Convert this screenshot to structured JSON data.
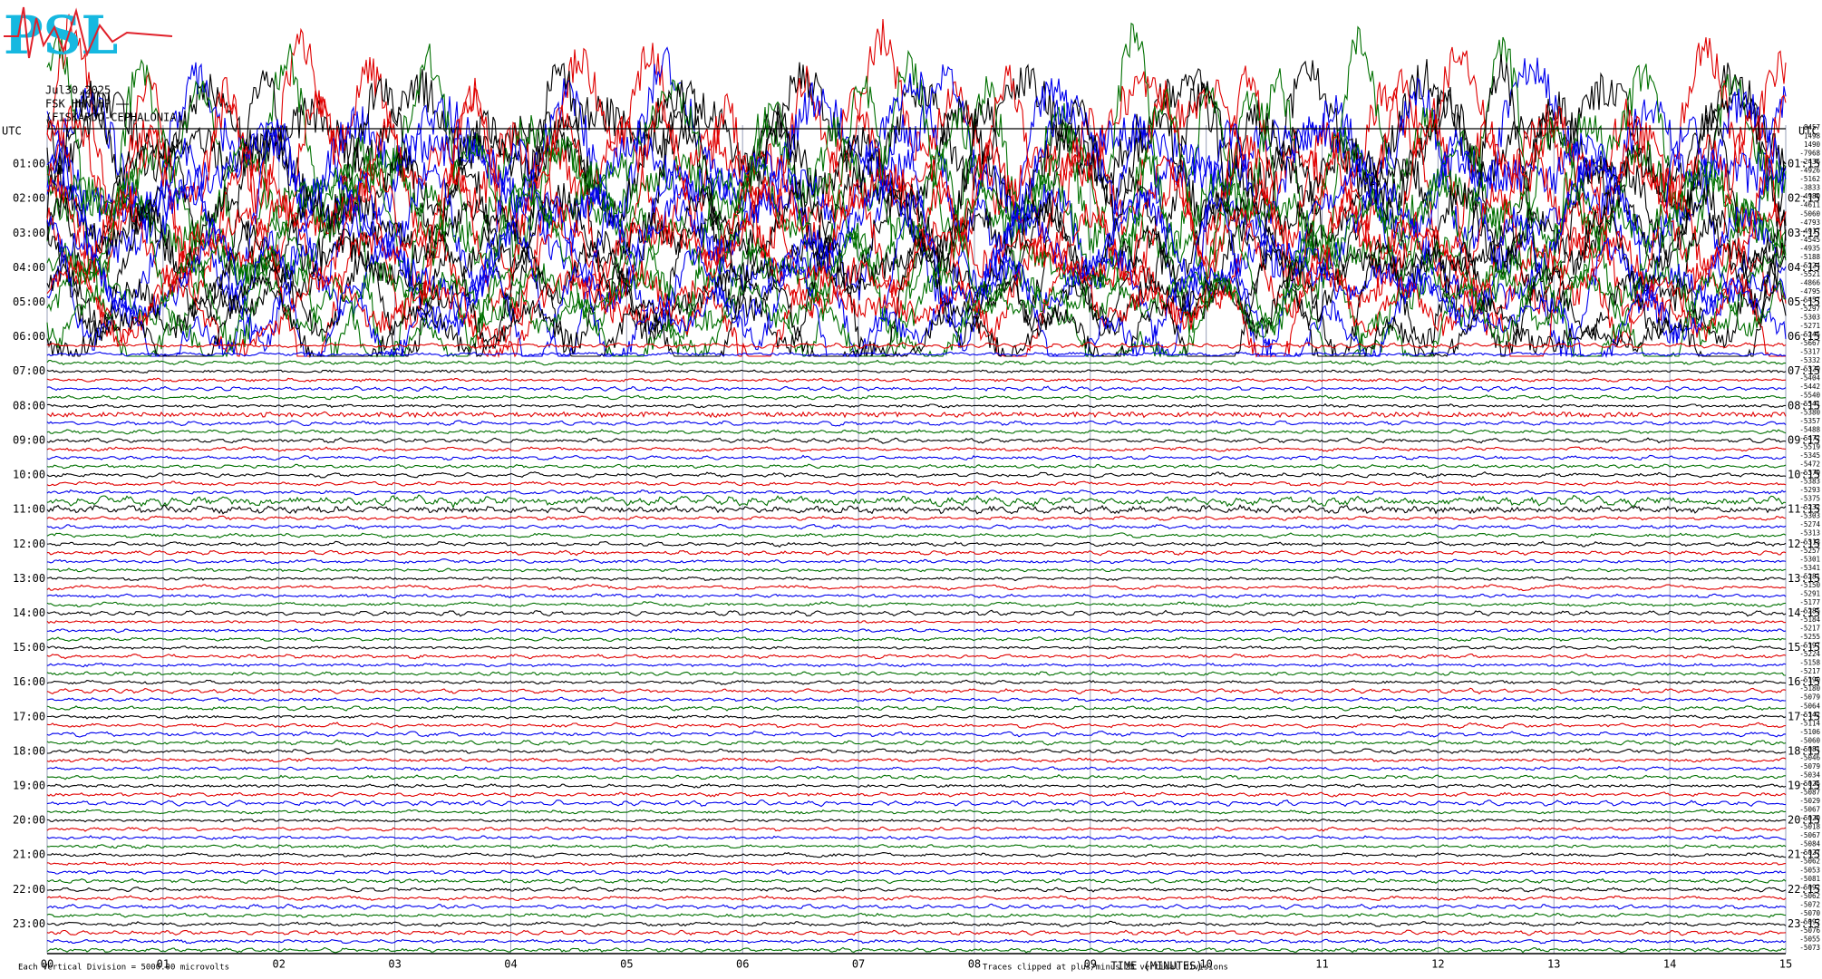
{
  "header": {
    "logo": "PSL",
    "date": "Jul30,2025",
    "station": "FSK HHN HP",
    "location": "(FISKARDO-CEPHALONIA)"
  },
  "left_axis": {
    "title": "UTC",
    "labels": [
      "01:00",
      "02:00",
      "03:00",
      "04:00",
      "05:00",
      "06:00",
      "07:00",
      "08:00",
      "09:00",
      "10:00",
      "11:00",
      "12:00",
      "13:00",
      "14:00",
      "15:00",
      "16:00",
      "17:00",
      "18:00",
      "19:00",
      "20:00",
      "21:00",
      "22:00",
      "23:00"
    ]
  },
  "right_axis": {
    "title": "UTC",
    "labels": [
      "01:15",
      "02:15",
      "03:15",
      "04:15",
      "05:15",
      "06:15",
      "07:15",
      "08:15",
      "09:15",
      "10:15",
      "11:15",
      "12:15",
      "13:15",
      "14:15",
      "15:15",
      "16:15",
      "17:15",
      "18:15",
      "19:15",
      "20:15",
      "21:15",
      "22:15",
      "23:15"
    ]
  },
  "trace_offsets": [
    -8457,
    1498,
    1490,
    -7968,
    -2436,
    -4926,
    -5162,
    -3833,
    -4980,
    -4611,
    -5060,
    -4793,
    -4917,
    -4545,
    -4935,
    -5188,
    -5224,
    -5521,
    -4866,
    -4795,
    -5457,
    -5297,
    -5303,
    -5271,
    -5245,
    -5667,
    -5317,
    -5332,
    -5329,
    -5404,
    -5442,
    -5540,
    -5541,
    -5380,
    -5357,
    -5488,
    -5472,
    -5519,
    -5345,
    -5472,
    -5379,
    -5383,
    -5293,
    -5375,
    -5232,
    -5303,
    -5274,
    -5313,
    -5313,
    -5257,
    -5301,
    -5341,
    -5281,
    -5150,
    -5291,
    -5177,
    -5285,
    -5184,
    -5217,
    -5255,
    -5197,
    -5224,
    -5158,
    -5217,
    -5190,
    -5180,
    -5079,
    -5064,
    -5142,
    -5114,
    -5106,
    -5060,
    -5081,
    -5046,
    -5079,
    -5034,
    -5025,
    -5087,
    -5029,
    -5067,
    -5020,
    -5018,
    -5067,
    -5084,
    -5027,
    -5062,
    -5053,
    -5081,
    -5092,
    -5062,
    -5072,
    -5070,
    -5092,
    -5076,
    -5055,
    -5073
  ],
  "x_axis": {
    "title": "TIME (MINUTES)",
    "ticks": [
      "00",
      "01",
      "02",
      "03",
      "04",
      "05",
      "06",
      "07",
      "08",
      "09",
      "10",
      "11",
      "12",
      "13",
      "14",
      "15"
    ]
  },
  "footer": {
    "scale": "Each Vertical Division = 5000.00 microvolts",
    "clip": "Traces clipped at plus/minus 25 vertical divisions"
  }
}
